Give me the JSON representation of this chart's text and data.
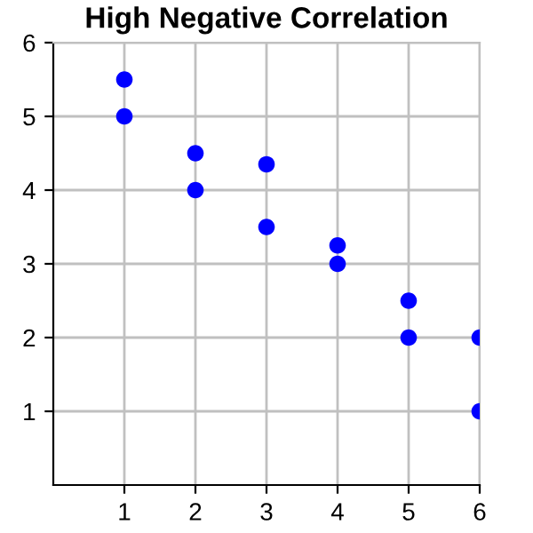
{
  "chart_data": {
    "type": "scatter",
    "title": "High Negative Correlation",
    "x": [
      1,
      1,
      2,
      2,
      3,
      3,
      4,
      4,
      5,
      5,
      6,
      6
    ],
    "values": [
      5.5,
      5,
      4.5,
      4,
      4.35,
      3.5,
      3.25,
      3,
      2.5,
      2,
      2,
      1
    ],
    "color": "#0000ff",
    "marker": "circle",
    "xlim": [
      0,
      6
    ],
    "ylim": [
      0,
      6
    ],
    "xticks": [
      1,
      2,
      3,
      4,
      5,
      6
    ],
    "yticks": [
      1,
      2,
      3,
      4,
      5,
      6
    ],
    "grid": true
  }
}
